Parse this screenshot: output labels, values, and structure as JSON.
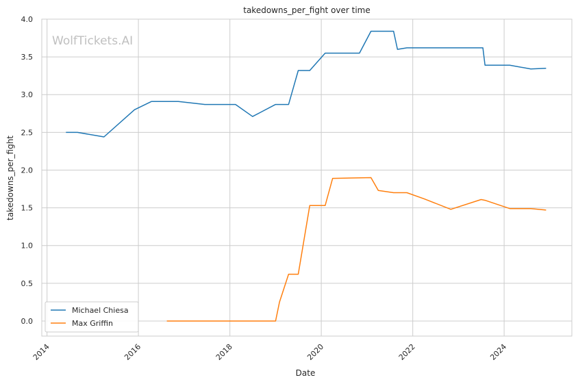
{
  "chart_data": {
    "type": "line",
    "title": "takedowns_per_fight over time",
    "xlabel": "Date",
    "ylabel": "takedowns_per_fight",
    "watermark": "WolfTickets.AI",
    "xlim": [
      "2013-11-20",
      "2025-06-25"
    ],
    "ylim": [
      -0.2,
      4.0
    ],
    "x_ticks": [
      "2014",
      "2016",
      "2018",
      "2020",
      "2022",
      "2024"
    ],
    "y_ticks": [
      "0.0",
      "0.5",
      "1.0",
      "1.5",
      "2.0",
      "2.5",
      "3.0",
      "3.5",
      "4.0"
    ],
    "grid": true,
    "legend_position": "lower-left",
    "series": [
      {
        "name": "Michael Chiesa",
        "color": "#1f77b4",
        "x": [
          "2014-06-01",
          "2014-09-01",
          "2015-04-01",
          "2015-12-01",
          "2016-04-15",
          "2016-11-15",
          "2017-06-15",
          "2018-02-15",
          "2018-07-01",
          "2019-01-01",
          "2019-04-15",
          "2019-07-01",
          "2019-10-01",
          "2020-02-01",
          "2020-11-01",
          "2021-02-01",
          "2021-08-01",
          "2021-09-01",
          "2021-11-15",
          "2023-07-15",
          "2023-08-01",
          "2024-02-15",
          "2024-08-01",
          "2024-12-01"
        ],
        "y": [
          2.5,
          2.5,
          2.44,
          2.8,
          2.91,
          2.91,
          2.87,
          2.87,
          2.71,
          2.87,
          2.87,
          3.32,
          3.32,
          3.55,
          3.55,
          3.84,
          3.84,
          3.6,
          3.62,
          3.62,
          3.39,
          3.39,
          3.34,
          3.35
        ]
      },
      {
        "name": "Max Griffin",
        "color": "#ff7f0e",
        "x": [
          "2016-08-15",
          "2019-01-01",
          "2019-02-01",
          "2019-04-15",
          "2019-07-01",
          "2019-10-01",
          "2020-02-01",
          "2020-04-01",
          "2021-02-01",
          "2021-04-01",
          "2021-08-01",
          "2021-11-15",
          "2022-04-01",
          "2022-11-01",
          "2023-07-01",
          "2023-08-01",
          "2024-02-15",
          "2024-08-01",
          "2024-12-01"
        ],
        "y": [
          0.0,
          0.0,
          0.25,
          0.62,
          0.62,
          1.53,
          1.53,
          1.89,
          1.9,
          1.73,
          1.7,
          1.7,
          1.62,
          1.48,
          1.61,
          1.6,
          1.49,
          1.49,
          1.47
        ]
      }
    ]
  }
}
